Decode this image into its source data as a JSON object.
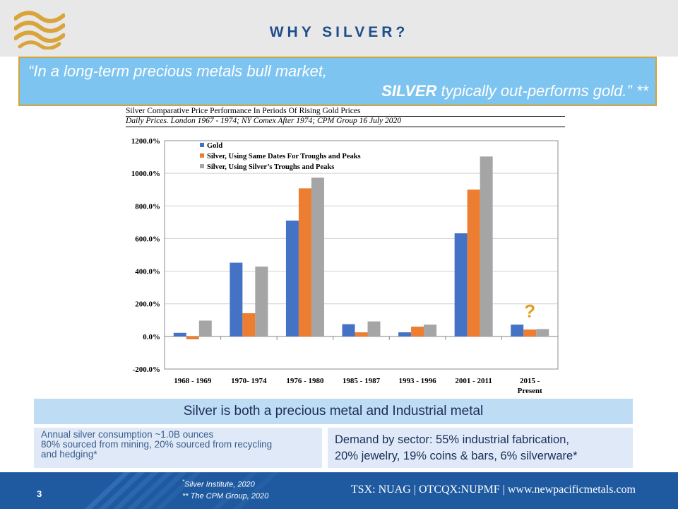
{
  "header": {
    "title": "WHY SILVER?"
  },
  "quote": {
    "line1": "“In a long-term precious metals bull market,",
    "line2_bold": "SILVER",
    "line2_rest": " typically out-performs gold.” **"
  },
  "colors": {
    "gold": "#4472c4",
    "silver_same": "#ed7d31",
    "silver_own": "#a5a5a5",
    "accent": "#d4a533",
    "footer": "#1f5aa0"
  },
  "chart_data": {
    "type": "bar",
    "title": "Silver Comparative Price Performance In Periods Of Rising Gold Prices",
    "subtitle": "Daily Prices. London 1967 - 1974; NY Comex After 1974; CPM Group 16 July 2020",
    "categories": [
      "1968 - 1969",
      "1970- 1974",
      "1976 - 1980",
      "1985 - 1987",
      "1993 - 1996",
      "2001 - 2011",
      "2015 - Present"
    ],
    "category_lines": [
      [
        "1968 - 1969"
      ],
      [
        "1970- 1974"
      ],
      [
        "1976 - 1980"
      ],
      [
        "1985 - 1987"
      ],
      [
        "1993 - 1996"
      ],
      [
        "2001 - 2011"
      ],
      [
        "2015 -",
        "Present"
      ]
    ],
    "series": [
      {
        "name": "Gold",
        "values": [
          22,
          452,
          710,
          75,
          25,
          632,
          72
        ]
      },
      {
        "name": "Silver, Using Same Dates For Troughs and Peaks",
        "values": [
          -18,
          142,
          908,
          25,
          60,
          900,
          42
        ]
      },
      {
        "name": "Silver, Using Silver’s Troughs and Peaks",
        "values": [
          97,
          428,
          973,
          92,
          72,
          1103,
          45
        ]
      }
    ],
    "ylim": [
      -200,
      1200
    ],
    "yticks": [
      -200,
      0,
      200,
      400,
      600,
      800,
      1000,
      1200
    ],
    "ytick_labels": [
      "-200.0%",
      "0.0%",
      "200.0%",
      "400.0%",
      "600.0%",
      "800.0%",
      "1000.0%",
      "1200.0%"
    ],
    "grid": true,
    "legend_position": "top-left",
    "annotation": "?"
  },
  "banner": {
    "text": "Silver is both a precious metal and Industrial metal"
  },
  "box_left": {
    "line1": "Annual silver consumption ~1.0B ounces",
    "line2": "80% sourced from mining, 20% sourced from recycling",
    "line3": "and hedging*"
  },
  "box_right": {
    "line1": "Demand by sector: 55% industrial fabrication,",
    "line2": "20% jewelry, 19% coins & bars, 6% silverware*"
  },
  "footer": {
    "page_number": "3",
    "ref1": "Silver Institute, 2020",
    "ref1_marker": "*",
    "ref2": "** The CPM Group, 2020",
    "info": "TSX: NUAG  |  OTCQX:NUPMF  |  www.newpacificmetals.com"
  }
}
